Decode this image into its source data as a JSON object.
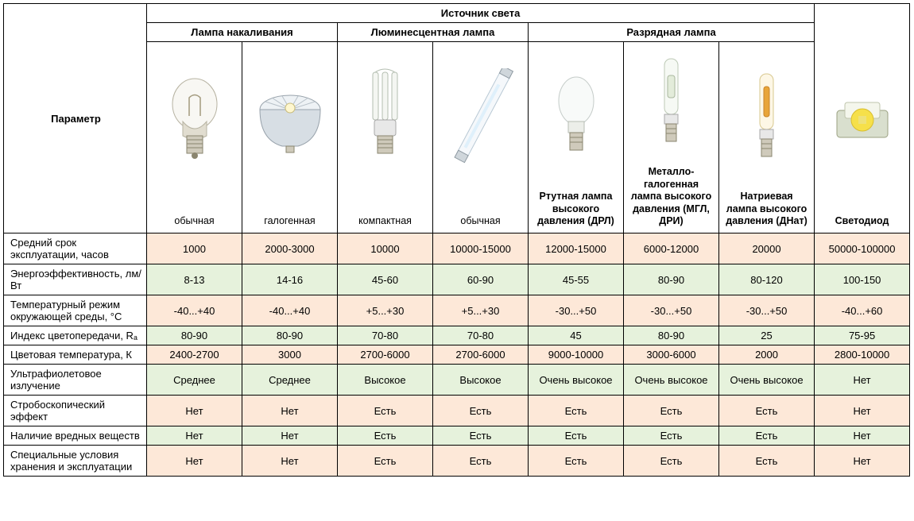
{
  "colors": {
    "peach": "#fde8d8",
    "green": "#e6f2dc",
    "border": "#000000",
    "bg": "#ffffff"
  },
  "header": {
    "top": "Источник света",
    "groups": [
      "Лампа накаливания",
      "Люминесцентная лампа",
      "Разрядная лампа"
    ],
    "param_label": "Параметр"
  },
  "lamps": [
    {
      "key": "incandescent-standard",
      "label": "",
      "subtype": "обычная"
    },
    {
      "key": "halogen",
      "label": "",
      "subtype": "галогенная"
    },
    {
      "key": "cfl",
      "label": "",
      "subtype": "компактная"
    },
    {
      "key": "fluorescent-tube",
      "label": "",
      "subtype": "обычная"
    },
    {
      "key": "mercury-hid",
      "label": "Ртутная лампа высокого давления (ДРЛ)",
      "subtype": ""
    },
    {
      "key": "metal-halide",
      "label": "Металло-галогенная лампа высокого давления (МГЛ, ДРИ)",
      "subtype": ""
    },
    {
      "key": "sodium-hid",
      "label": "Натриевая лампа высокого давления (ДНат)",
      "subtype": ""
    },
    {
      "key": "led",
      "label": "",
      "subtype": "Светодиод"
    }
  ],
  "params": [
    {
      "name": "Средний срок эксплуатации, часов",
      "values": [
        "1000",
        "2000-3000",
        "10000",
        "10000-15000",
        "12000-15000",
        "6000-12000",
        "20000",
        "50000-100000"
      ]
    },
    {
      "name": "Энергоэффективность, лм/Вт",
      "values": [
        "8-13",
        "14-16",
        "45-60",
        "60-90",
        "45-55",
        "80-90",
        "80-120",
        "100-150"
      ]
    },
    {
      "name": "Температурный режим окружающей среды, °C",
      "values": [
        "-40...+40",
        "-40...+40",
        "+5...+30",
        "+5...+30",
        "-30...+50",
        "-30...+50",
        "-30...+50",
        "-40...+60"
      ]
    },
    {
      "name": "Индекс цветопередачи, Rₐ",
      "values": [
        "80-90",
        "80-90",
        "70-80",
        "70-80",
        "45",
        "80-90",
        "25",
        "75-95"
      ]
    },
    {
      "name": "Цветовая температура, К",
      "values": [
        "2400-2700",
        "3000",
        "2700-6000",
        "2700-6000",
        "9000-10000",
        "3000-6000",
        "2000",
        "2800-10000"
      ]
    },
    {
      "name": "Ультрафиолетовое излучение",
      "values": [
        "Среднее",
        "Среднее",
        "Высокое",
        "Высокое",
        "Очень высокое",
        "Очень высокое",
        "Очень высокое",
        "Нет"
      ]
    },
    {
      "name": "Стробоскопический эффект",
      "values": [
        "Нет",
        "Нет",
        "Есть",
        "Есть",
        "Есть",
        "Есть",
        "Есть",
        "Нет"
      ]
    },
    {
      "name": "Наличие вредных веществ",
      "values": [
        "Нет",
        "Нет",
        "Есть",
        "Есть",
        "Есть",
        "Есть",
        "Есть",
        "Нет"
      ]
    },
    {
      "name": "Специальные условия хранения и эксплуатации",
      "values": [
        "Нет",
        "Нет",
        "Есть",
        "Есть",
        "Есть",
        "Есть",
        "Есть",
        "Нет"
      ]
    }
  ],
  "row_styles": [
    "peach",
    "green",
    "peach",
    "green",
    "peach",
    "green",
    "peach",
    "green",
    "peach"
  ]
}
